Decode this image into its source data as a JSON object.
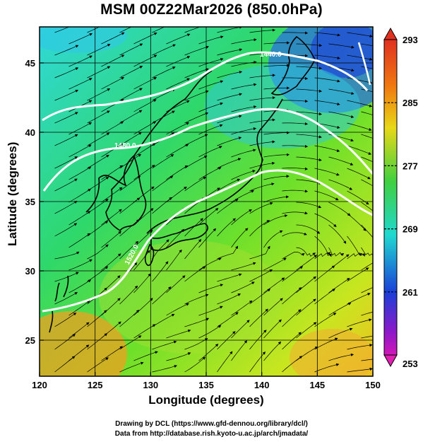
{
  "title": "MSM 00Z22Mar2026 (850.0hPa)",
  "axes": {
    "xlabel": "Longitude (degrees)",
    "ylabel": "Latitude  (degrees)",
    "xlim": [
      120,
      150
    ],
    "ylim": [
      22.4,
      47.6
    ],
    "xticks": [
      "120",
      "125",
      "130",
      "135",
      "140",
      "145",
      "150"
    ],
    "yticks": [
      "25",
      "30",
      "35",
      "40",
      "45"
    ]
  },
  "colorbar": {
    "ticks": [
      "293",
      "285",
      "277",
      "269",
      "261",
      "253"
    ],
    "min": 253,
    "max": 293
  },
  "contour_labels": [
    "1440.0",
    "1480.0",
    "1520.0"
  ],
  "credits": {
    "line1": "Drawing by DCL (https://www.gfd-dennou.org/library/dcl/)",
    "line2": "Data from http://database.rish.kyoto-u.ac.jp/arch/jmadata/"
  },
  "colors": {
    "contour": "#ffffff",
    "coast": "#000000",
    "stream": "#000000",
    "frame": "#000000"
  }
}
